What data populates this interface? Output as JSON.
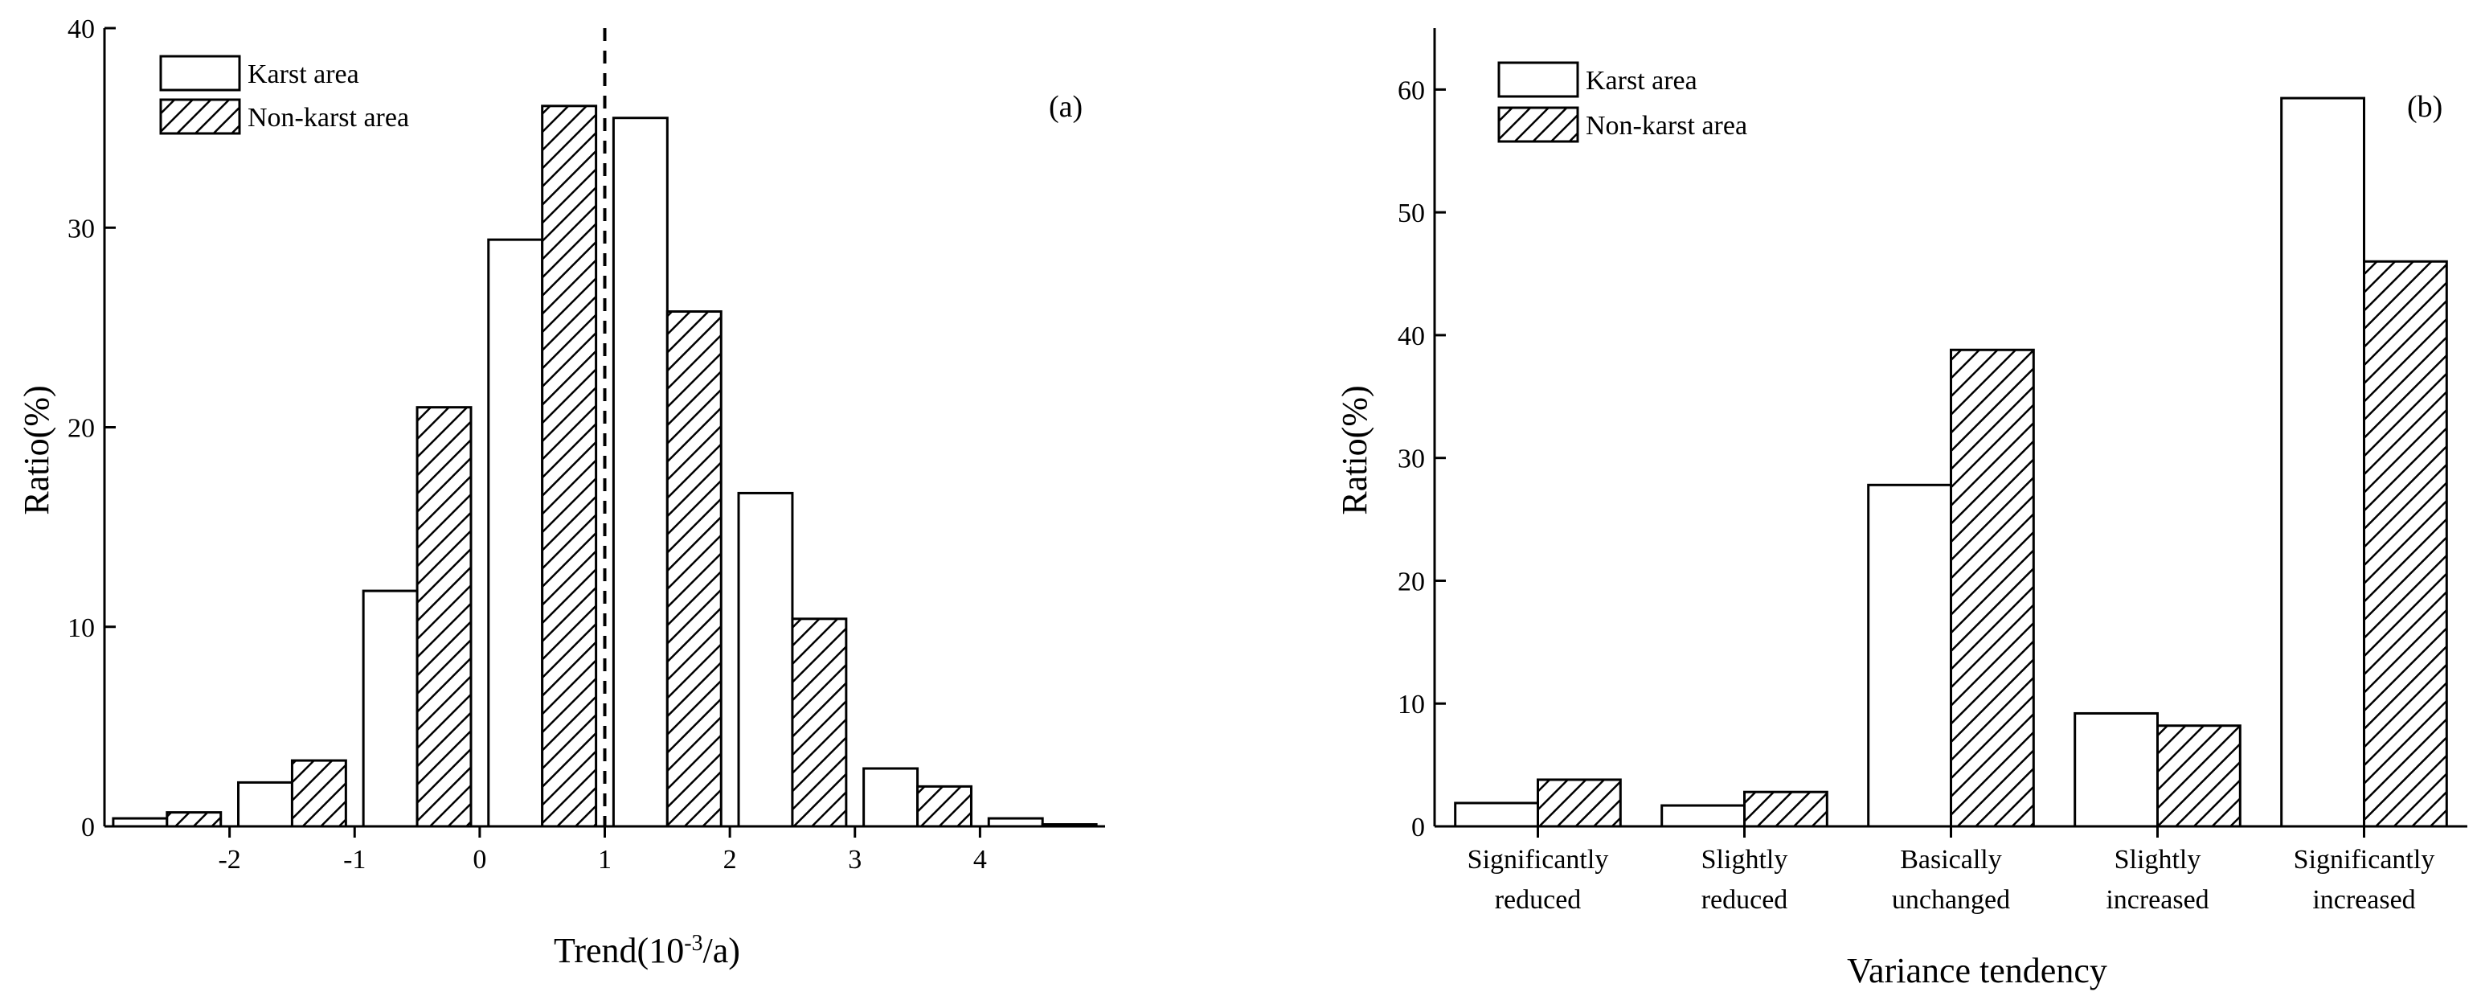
{
  "chart_data": [
    {
      "type": "bar",
      "panel_label": "(a)",
      "xlabel_main": "Trend(10",
      "xlabel_sup": "-3",
      "xlabel_tail": "/a)",
      "ylabel": "Ratio(%)",
      "ylim": [
        0,
        40
      ],
      "yticks": [
        0,
        10,
        20,
        30,
        40
      ],
      "xlim": [
        -3,
        5
      ],
      "xticks": [
        -2,
        -1,
        0,
        1,
        2,
        3,
        4
      ],
      "bin_width": 1,
      "bin_centers": [
        -2.5,
        -1.5,
        -0.5,
        0.5,
        1.5,
        2.5,
        3.5,
        4.5
      ],
      "reference_line_x": 1,
      "legend_position": "top-left",
      "series": [
        {
          "name": "Karst area",
          "pattern": "none",
          "values": [
            0.4,
            2.2,
            11.8,
            29.4,
            35.5,
            16.7,
            2.9,
            0.4
          ]
        },
        {
          "name": "Non-karst area",
          "pattern": "hatch",
          "values": [
            0.7,
            3.3,
            21.0,
            36.1,
            25.8,
            10.4,
            2.0,
            0.1
          ]
        }
      ]
    },
    {
      "type": "bar",
      "panel_label": "(b)",
      "xlabel": "Variance tendency",
      "ylabel": "Ratio(%)",
      "ylim": [
        0,
        65
      ],
      "yticks": [
        0,
        10,
        20,
        30,
        40,
        50,
        60
      ],
      "categories": [
        [
          "Significantly",
          "reduced"
        ],
        [
          "Slightly",
          "reduced"
        ],
        [
          "Basically",
          "unchanged"
        ],
        [
          "Slightly",
          "increased"
        ],
        [
          "Significantly",
          "increased"
        ]
      ],
      "legend_position": "top-left",
      "series": [
        {
          "name": "Karst area",
          "pattern": "none",
          "values": [
            1.9,
            1.7,
            27.8,
            9.2,
            59.3
          ]
        },
        {
          "name": "Non-karst area",
          "pattern": "hatch",
          "values": [
            3.8,
            2.8,
            38.8,
            8.2,
            46.0
          ]
        }
      ]
    }
  ]
}
